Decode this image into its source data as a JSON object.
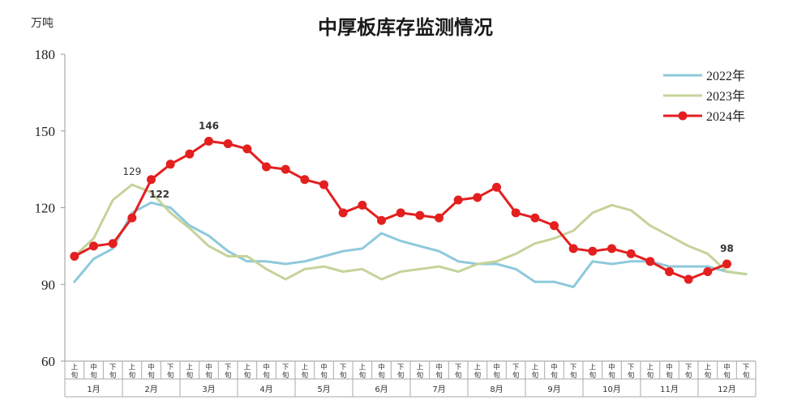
{
  "chart_data": {
    "type": "line",
    "title": "中厚板库存监测情况",
    "unit_label": "万吨",
    "ylim": [
      60,
      180
    ],
    "yticks": [
      60,
      90,
      120,
      150,
      180
    ],
    "months": [
      "1月",
      "2月",
      "3月",
      "4月",
      "5月",
      "6月",
      "7月",
      "8月",
      "9月",
      "10月",
      "11月",
      "12月"
    ],
    "periods": [
      "上\n旬",
      "中\n旬",
      "下\n旬"
    ],
    "legend_position": "top-right",
    "grid": false,
    "colors": {
      "2022年": "#8ec9dc",
      "2023年": "#c5d39a",
      "2024年": "#e41f1f"
    },
    "series": [
      {
        "name": "2022年",
        "values": [
          91,
          100,
          104,
          118,
          122,
          120,
          113,
          109,
          103,
          99,
          99,
          98,
          99,
          101,
          103,
          104,
          110,
          107,
          105,
          103,
          99,
          98,
          98,
          96,
          91,
          91,
          89,
          99,
          98,
          99,
          99,
          97,
          97,
          97,
          95,
          94
        ]
      },
      {
        "name": "2023年",
        "values": [
          101,
          108,
          123,
          129,
          126,
          118,
          112,
          105,
          101,
          101,
          96,
          92,
          96,
          97,
          95,
          96,
          92,
          95,
          96,
          97,
          95,
          98,
          99,
          102,
          106,
          108,
          111,
          118,
          121,
          119,
          113,
          109,
          105,
          102,
          95,
          94
        ]
      },
      {
        "name": "2024年",
        "values": [
          101,
          105,
          106,
          116,
          131,
          137,
          141,
          146,
          145,
          143,
          136,
          135,
          131,
          129,
          118,
          121,
          115,
          118,
          117,
          116,
          123,
          124,
          128,
          118,
          116,
          113,
          104,
          103,
          104,
          102,
          99,
          95,
          92,
          95,
          98
        ]
      }
    ],
    "data_labels": [
      {
        "series": "2023年",
        "index": 3,
        "text": "129"
      },
      {
        "series": "2022年",
        "index": 4,
        "text": "122"
      },
      {
        "series": "2024年",
        "index": 7,
        "text": "146"
      },
      {
        "series": "2024年",
        "index": 34,
        "text": "98"
      }
    ]
  }
}
